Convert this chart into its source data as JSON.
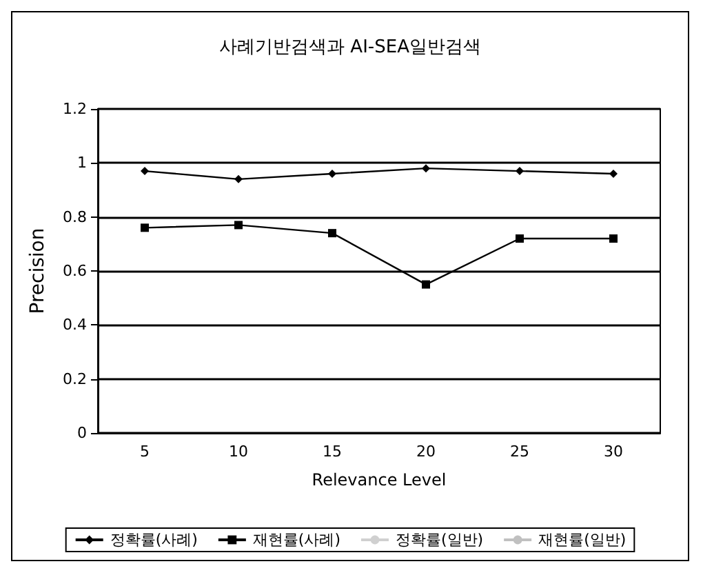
{
  "chart_data": {
    "type": "line",
    "title": "사례기반검색과 AI-SEA일반검색",
    "xlabel": "Relevance Level",
    "ylabel": "Precision",
    "categories": [
      "5",
      "10",
      "15",
      "20",
      "25",
      "30"
    ],
    "series": [
      {
        "name": "정확률(사례)",
        "color": "#000000",
        "marker": "diamond",
        "values": [
          0.97,
          0.94,
          0.96,
          0.98,
          0.97,
          0.96
        ]
      },
      {
        "name": "재현률(사례)",
        "color": "#000000",
        "marker": "square",
        "values": [
          0.76,
          0.77,
          0.74,
          0.55,
          0.72,
          0.72
        ]
      },
      {
        "name": "정확률(일반)",
        "color": "#d0d0d0",
        "values": [
          null,
          null,
          null,
          null,
          null,
          null
        ]
      },
      {
        "name": "재현률(일반)",
        "color": "#c0c0c0",
        "values": [
          null,
          null,
          null,
          null,
          null,
          null
        ]
      }
    ],
    "ylim": [
      0,
      1.2
    ],
    "yticks": [
      0,
      0.2,
      0.4,
      0.6,
      0.8,
      1,
      1.2
    ],
    "grid": "y",
    "legend": "bottom",
    "line_style": "solid"
  }
}
